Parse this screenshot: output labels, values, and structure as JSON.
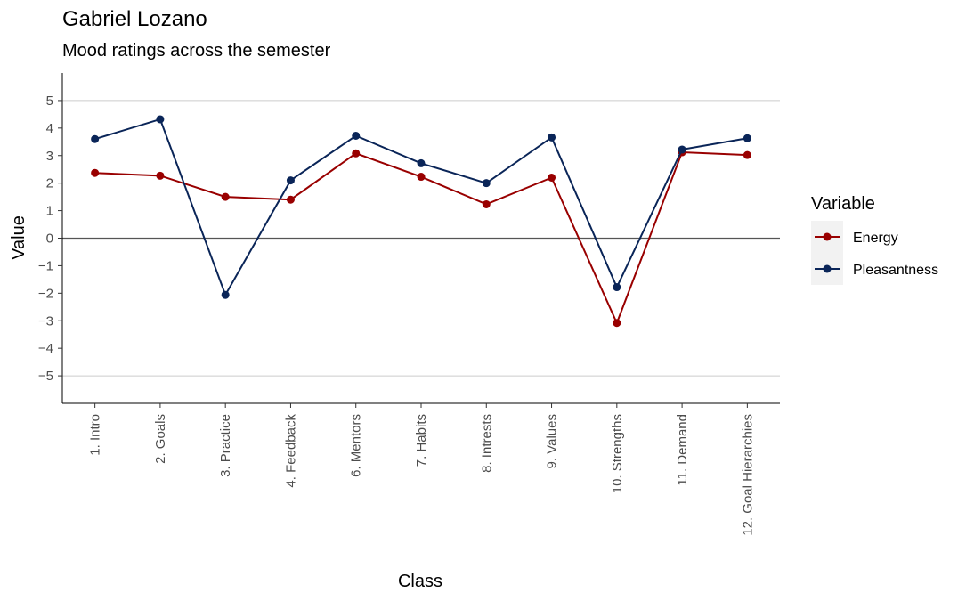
{
  "chart_data": {
    "type": "line",
    "title": "Gabriel Lozano",
    "subtitle": "Mood ratings across the semester",
    "xlabel": "Class",
    "ylabel": "Value",
    "categories": [
      "1. Intro",
      "2. Goals",
      "3. Practice",
      "4. Feedback",
      "6. Mentors",
      "7. Habits",
      "8. Intrests",
      "9. Values",
      "10. Strengths",
      "11. Demand",
      "12. Goal Hierarchies"
    ],
    "series": [
      {
        "name": "Energy",
        "color": "#990000",
        "values": [
          2.37,
          2.27,
          1.5,
          1.4,
          3.08,
          2.23,
          1.23,
          2.2,
          -3.08,
          3.12,
          3.02
        ]
      },
      {
        "name": "Pleasantness",
        "color": "#0a2558",
        "values": [
          3.6,
          4.32,
          -2.06,
          2.1,
          3.72,
          2.72,
          2.0,
          3.66,
          -1.78,
          3.22,
          3.63
        ]
      }
    ],
    "ylim": [
      -6,
      6
    ],
    "yticks": [
      5,
      4,
      3,
      2,
      1,
      0,
      -1,
      -2,
      -3,
      -4,
      -5
    ],
    "ytick_labels": [
      "5",
      "4",
      "3",
      "2",
      "1",
      "0",
      "−1",
      "−2",
      "−3",
      "−4",
      "−5"
    ],
    "gridlines": [
      5,
      -5
    ],
    "zero_line": true,
    "legend": {
      "title": "Variable",
      "position": "right"
    }
  }
}
